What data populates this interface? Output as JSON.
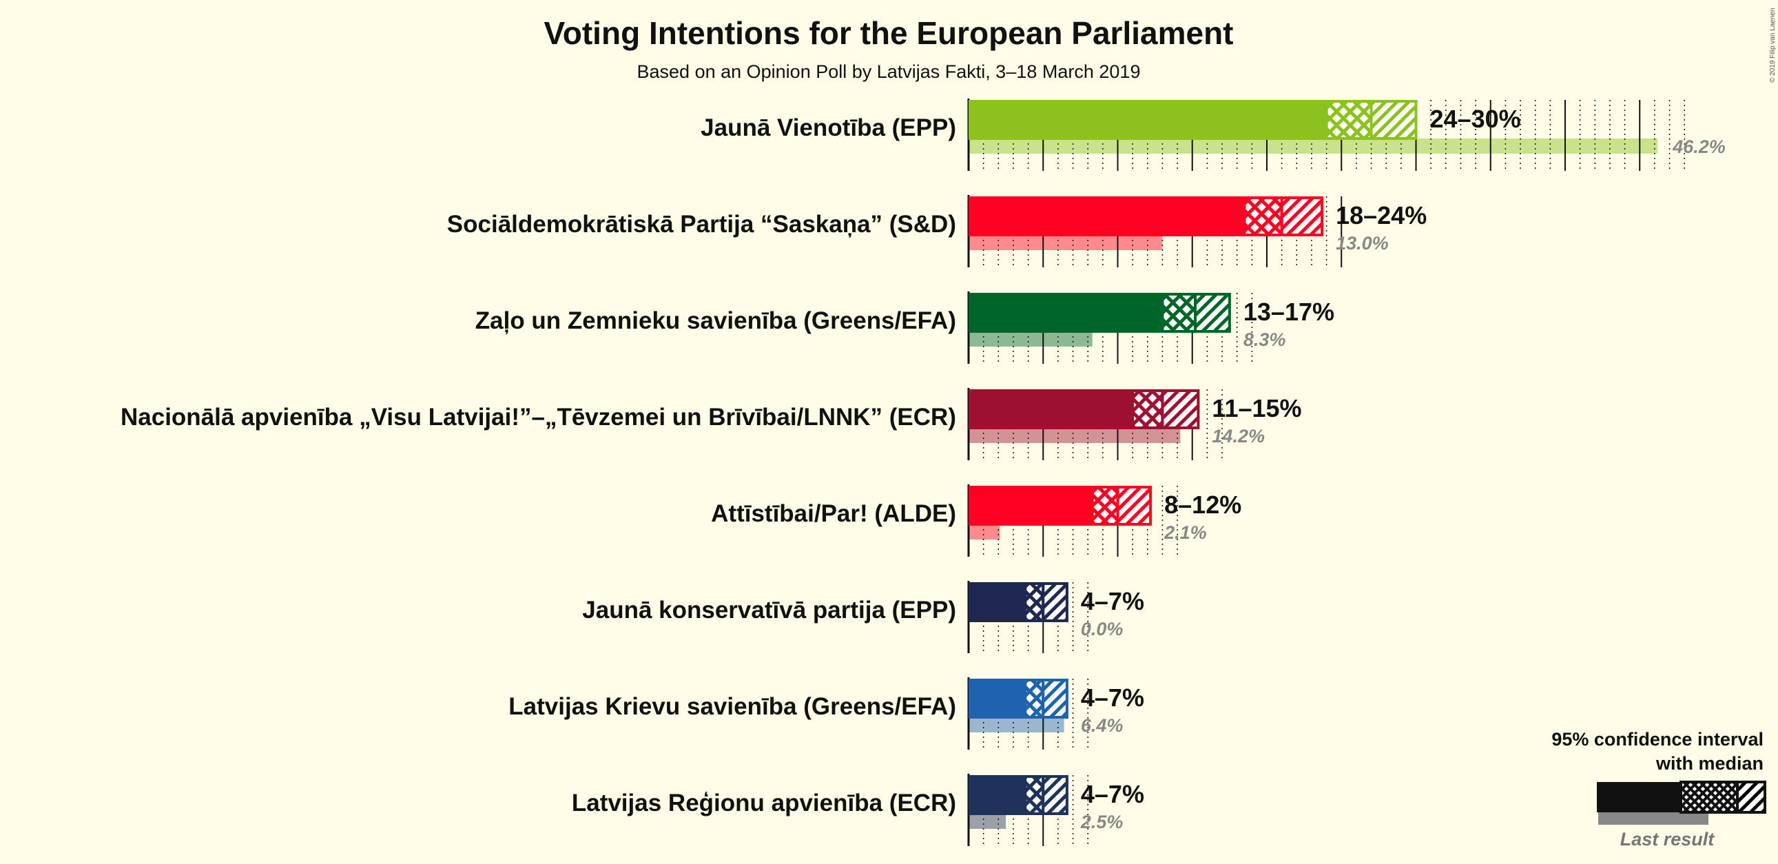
{
  "chart_data": {
    "type": "bar",
    "title": "Voting Intentions for the European Parliament",
    "subtitle": "Based on an Opinion Poll by Latvijas Fakti, 3–18 March 2019",
    "copyright": "© 2019 Filip van Laenen",
    "legend": {
      "ci_label_line1": "95% confidence interval",
      "ci_label_line2": "with median",
      "last_result_label": "Last result",
      "placement": "bottom-right"
    },
    "parties": [
      {
        "name": "Jaunā Vienotība (EPP)",
        "range_label": "24–30%",
        "low": 24,
        "median": 27,
        "high": 30,
        "last_result": 46.2,
        "last_label": "46.2%",
        "color": "#8bc21e"
      },
      {
        "name": "Sociāldemokrātiskā Partija “Saskaņa” (S&D)",
        "range_label": "18–24%",
        "low": 18.5,
        "median": 21,
        "high": 23.7,
        "last_result": 13.0,
        "last_label": "13.0%",
        "color": "#ff0022"
      },
      {
        "name": "Zaļo un Zemnieku savienība (Greens/EFA)",
        "range_label": "13–17%",
        "low": 13,
        "median": 15.2,
        "high": 17.5,
        "last_result": 8.3,
        "last_label": "8.3%",
        "color": "#006628"
      },
      {
        "name": "Nacionālā apvienība „Visu Latvijai!”–„Tēvzemei un Brīvībai/LNNK” (ECR)",
        "range_label": "11–15%",
        "low": 11,
        "median": 13,
        "high": 15.4,
        "last_result": 14.2,
        "last_label": "14.2%",
        "color": "#9e1030"
      },
      {
        "name": "Attīstībai/Par! (ALDE)",
        "range_label": "8–12%",
        "low": 8.3,
        "median": 10,
        "high": 12.2,
        "last_result": 2.1,
        "last_label": "2.1%",
        "color": "#ff0022"
      },
      {
        "name": "Jaunā konservatīvā partija (EPP)",
        "range_label": "4–7%",
        "low": 3.8,
        "median": 5,
        "high": 6.6,
        "last_result": 0.0,
        "last_label": "0.0%",
        "color": "#1f2850"
      },
      {
        "name": "Latvijas Krievu savienība (Greens/EFA)",
        "range_label": "4–7%",
        "low": 3.8,
        "median": 5,
        "high": 6.6,
        "last_result": 6.4,
        "last_label": "6.4%",
        "color": "#1e63ad"
      },
      {
        "name": "Latvijas Reģionu apvienība (ECR)",
        "range_label": "4–7%",
        "low": 3.8,
        "median": 5,
        "high": 6.6,
        "last_result": 2.5,
        "last_label": "2.5%",
        "color": "#1f325c"
      }
    ],
    "x_range": [
      0,
      47
    ]
  }
}
